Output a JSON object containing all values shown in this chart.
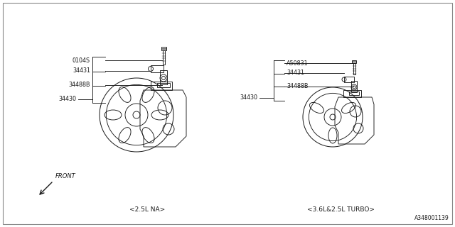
{
  "bg_color": "#ffffff",
  "line_color": "#1a1a1a",
  "text_color": "#1a1a1a",
  "diagram_id": "A348001139",
  "left_label": "<2.5L NA>",
  "right_label": "<3.6L&2.5L TURBO>",
  "front_label": "FRONT",
  "lw": 0.65,
  "fs": 5.8,
  "left_parts": [
    "0104S",
    "34431",
    "34488B",
    "34430"
  ],
  "right_parts": [
    "A50831",
    "34431",
    "34488B",
    "34430"
  ]
}
